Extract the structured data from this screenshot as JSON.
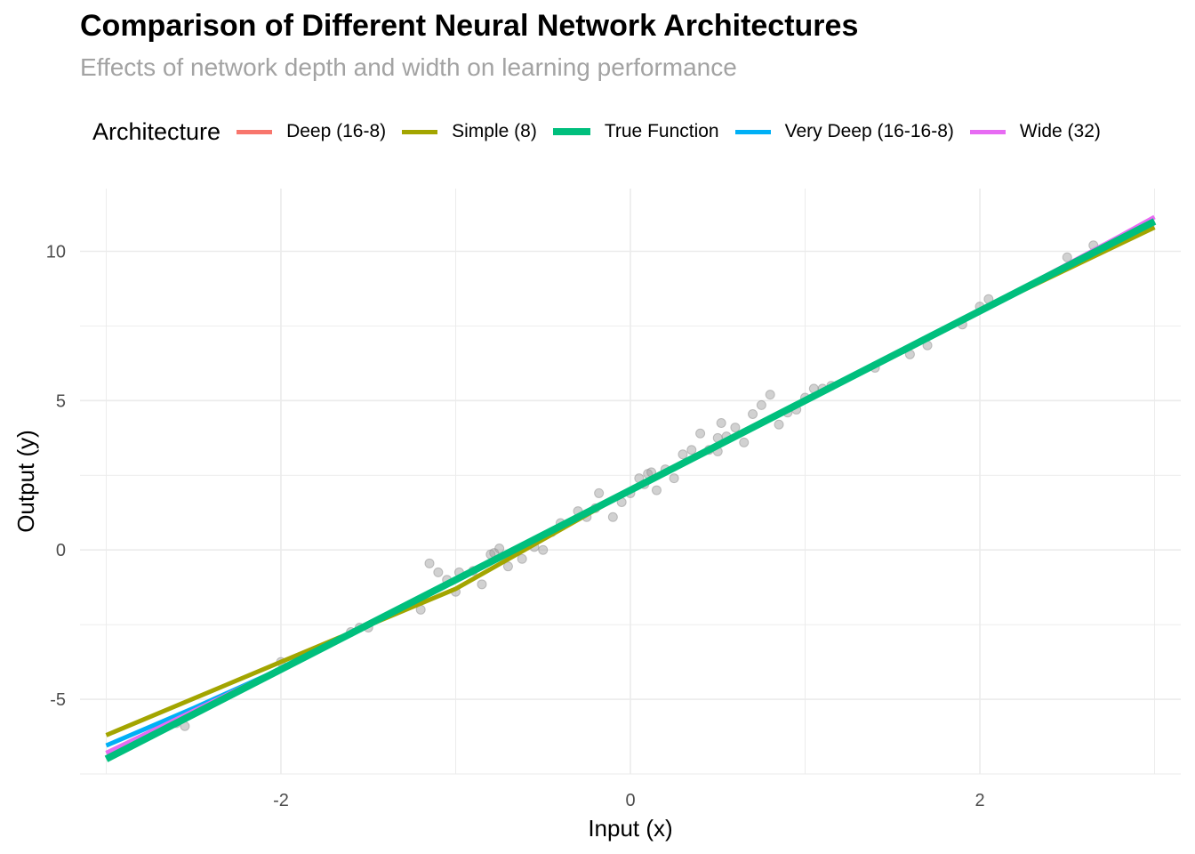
{
  "chart_data": {
    "type": "line",
    "title": "Comparison of Different Neural Network Architectures",
    "subtitle": "Effects of network depth and width on learning performance",
    "xlabel": "Input (x)",
    "ylabel": "Output (y)",
    "xlim": [
      -3.15,
      3.15
    ],
    "ylim": [
      -7.5,
      12.1
    ],
    "x_ticks": [
      -2,
      0,
      2
    ],
    "x_tick_labels": [
      "-2",
      "0",
      "2"
    ],
    "y_ticks": [
      -5,
      0,
      5,
      10
    ],
    "y_tick_labels": [
      "-5",
      "0",
      "5",
      "10"
    ],
    "grid": true,
    "legend": {
      "title": "Architecture",
      "position": "top"
    },
    "series": [
      {
        "name": "Deep (16-8)",
        "color": "#F8766D",
        "width": 5,
        "x": [
          -3,
          -2,
          -1.2,
          -0.6,
          0,
          1,
          2,
          3
        ],
        "y": [
          -6.8,
          -3.97,
          -1.6,
          0.2,
          2.0,
          5.0,
          8.0,
          11.0
        ]
      },
      {
        "name": "Simple (8)",
        "color": "#A3A500",
        "width": 5,
        "x": [
          -3,
          -2,
          -1,
          -0.5,
          0,
          1,
          2,
          3
        ],
        "y": [
          -6.2,
          -3.75,
          -1.3,
          0.35,
          2.0,
          5.0,
          8.0,
          10.8
        ]
      },
      {
        "name": "Very Deep (16-16-8)",
        "color": "#00B0F6",
        "width": 5,
        "x": [
          -3,
          -2.5,
          -2,
          0,
          2,
          3
        ],
        "y": [
          -6.55,
          -5.3,
          -3.98,
          2.0,
          8.0,
          11.0
        ]
      },
      {
        "name": "Wide (32)",
        "color": "#E76BF3",
        "width": 5,
        "x": [
          -3,
          -2,
          0,
          2,
          2.8,
          3
        ],
        "y": [
          -6.8,
          -3.98,
          2.0,
          8.0,
          10.5,
          11.15
        ]
      },
      {
        "name": "True Function",
        "color": "#00BF7D",
        "width": 8,
        "x": [
          -3,
          3
        ],
        "y": [
          -7.0,
          11.0
        ]
      }
    ],
    "legend_order": [
      "Deep (16-8)",
      "Simple (8)",
      "True Function",
      "Very Deep (16-16-8)",
      "Wide (32)"
    ],
    "points": {
      "name": "observations",
      "color": "#999999",
      "x": [
        -2.6,
        -2.55,
        -2.0,
        -1.6,
        -1.55,
        -1.5,
        -1.2,
        -1.15,
        -1.1,
        -1.05,
        -1.0,
        -0.98,
        -0.9,
        -0.85,
        -0.8,
        -0.78,
        -0.75,
        -0.7,
        -0.62,
        -0.55,
        -0.5,
        -0.45,
        -0.4,
        -0.3,
        -0.25,
        -0.2,
        -0.18,
        -0.1,
        -0.05,
        0.0,
        0.05,
        0.08,
        0.1,
        0.12,
        0.15,
        0.2,
        0.25,
        0.3,
        0.35,
        0.4,
        0.45,
        0.5,
        0.5,
        0.52,
        0.55,
        0.6,
        0.65,
        0.7,
        0.75,
        0.8,
        0.85,
        0.9,
        0.95,
        1.0,
        1.05,
        1.1,
        1.15,
        1.4,
        1.6,
        1.7,
        1.9,
        2.0,
        2.05,
        2.5,
        2.65
      ],
      "y": [
        -5.8,
        -5.9,
        -3.75,
        -2.75,
        -2.6,
        -2.6,
        -2.0,
        -0.45,
        -0.75,
        -1.0,
        -1.4,
        -0.75,
        -0.7,
        -1.15,
        -0.15,
        -0.1,
        0.05,
        -0.55,
        -0.3,
        0.1,
        0.0,
        0.6,
        0.9,
        1.3,
        1.1,
        1.4,
        1.9,
        1.1,
        1.6,
        1.9,
        2.4,
        2.2,
        2.55,
        2.6,
        2.0,
        2.7,
        2.4,
        3.2,
        3.35,
        3.9,
        3.35,
        3.75,
        3.3,
        4.25,
        3.8,
        4.1,
        3.6,
        4.55,
        4.85,
        5.2,
        4.2,
        4.6,
        4.7,
        5.1,
        5.4,
        5.4,
        5.5,
        6.1,
        6.55,
        6.85,
        7.55,
        8.15,
        8.4,
        9.8,
        10.2
      ]
    }
  }
}
